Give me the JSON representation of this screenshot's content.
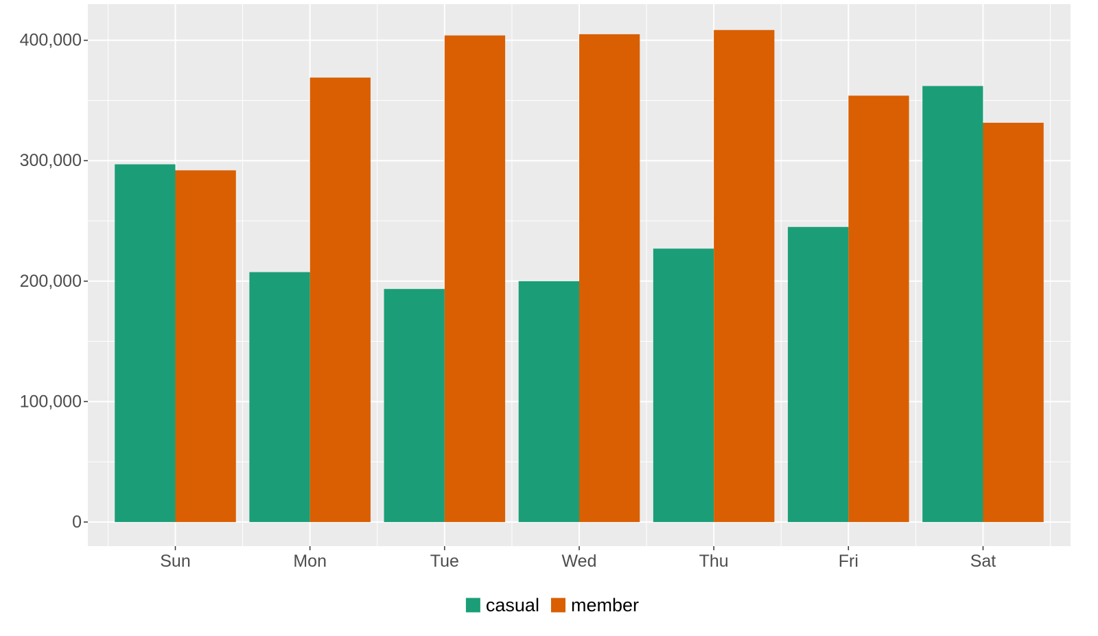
{
  "chart_data": {
    "type": "bar",
    "categories": [
      "Sun",
      "Mon",
      "Tue",
      "Wed",
      "Thu",
      "Fri",
      "Sat"
    ],
    "series": [
      {
        "name": "casual",
        "color": "#1b9e77",
        "values": [
          297000,
          207500,
          193500,
          200000,
          227000,
          245000,
          362000
        ]
      },
      {
        "name": "member",
        "color": "#d95f02",
        "values": [
          292000,
          369000,
          404000,
          405000,
          408500,
          354000,
          331500
        ]
      }
    ],
    "title": "",
    "xlabel": "",
    "ylabel": "",
    "ylim": [
      -20000,
      430000
    ],
    "yticks": [
      0,
      100000,
      200000,
      300000,
      400000
    ],
    "ytick_labels": [
      "0",
      "100,000",
      "200,000",
      "300,000",
      "400,000"
    ],
    "grid": true,
    "legend_position": "bottom",
    "background_color": "#ebebeb",
    "grid_color": "#ffffff"
  }
}
